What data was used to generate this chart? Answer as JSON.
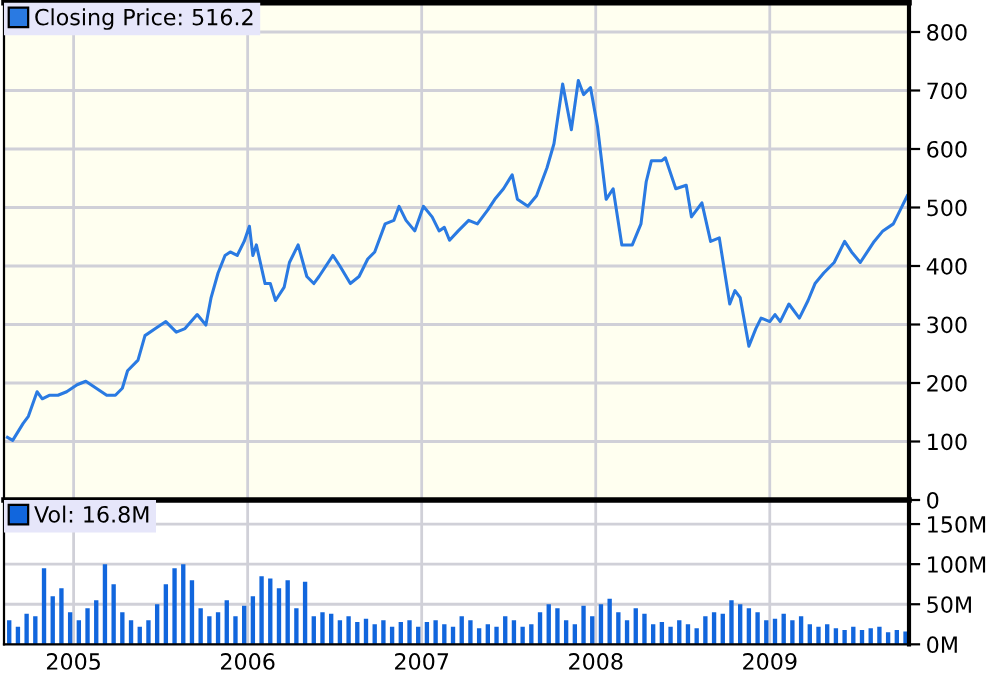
{
  "chart_data": [
    {
      "type": "line",
      "xlim": [
        2004.6,
        2009.8
      ],
      "xticks": [
        2005,
        2006,
        2007,
        2008,
        2009
      ],
      "ylim": [
        0,
        850
      ],
      "yticks": [
        0,
        100,
        200,
        300,
        400,
        500,
        600,
        700,
        800
      ],
      "grid": true,
      "legend": "top left",
      "tick_labels": "y",
      "series": [
        {
          "name": "Closing Price: 516.2",
          "color": "#2a7ae2",
          "x": [
            2004.62,
            2004.65,
            2004.71,
            2004.74,
            2004.79,
            2004.82,
            2004.86,
            2004.91,
            2004.96,
            2005.02,
            2005.07,
            2005.13,
            2005.19,
            2005.24,
            2005.28,
            2005.31,
            2005.37,
            2005.41,
            2005.47,
            2005.53,
            2005.59,
            2005.64,
            2005.71,
            2005.76,
            2005.79,
            2005.83,
            2005.87,
            2005.9,
            2005.94,
            2005.98,
            2006.01,
            2006.03,
            2006.05,
            2006.1,
            2006.13,
            2006.16,
            2006.21,
            2006.24,
            2006.29,
            2006.34,
            2006.38,
            2006.41,
            2006.49,
            2006.53,
            2006.59,
            2006.64,
            2006.69,
            2006.73,
            2006.79,
            2006.84,
            2006.87,
            2006.91,
            2006.96,
            2007.01,
            2007.06,
            2007.1,
            2007.13,
            2007.16,
            2007.21,
            2007.27,
            2007.32,
            2007.38,
            2007.42,
            2007.47,
            2007.52,
            2007.55,
            2007.61,
            2007.66,
            2007.72,
            2007.76,
            2007.81,
            2007.86,
            2007.9,
            2007.93,
            2007.97,
            2008.01,
            2008.06,
            2008.1,
            2008.15,
            2008.21,
            2008.26,
            2008.29,
            2008.32,
            2008.38,
            2008.4,
            2008.46,
            2008.52,
            2008.55,
            2008.61,
            2008.66,
            2008.71,
            2008.77,
            2008.8,
            2008.83,
            2008.88,
            2008.92,
            2008.95,
            2009.0,
            2009.03,
            2009.06,
            2009.11,
            2009.17,
            2009.22,
            2009.26,
            2009.31,
            2009.37,
            2009.43,
            2009.47,
            2009.52,
            2009.6,
            2009.65,
            2009.71,
            2009.74,
            2009.79
          ],
          "values": [
            107,
            102,
            131,
            143,
            185,
            173,
            179,
            179,
            185,
            197,
            203,
            191,
            179,
            179,
            191,
            221,
            239,
            281,
            293,
            305,
            287,
            293,
            317,
            299,
            346,
            388,
            418,
            424,
            418,
            442,
            468,
            418,
            436,
            370,
            370,
            341,
            364,
            406,
            436,
            382,
            370,
            382,
            418,
            400,
            370,
            382,
            412,
            424,
            472,
            478,
            502,
            478,
            460,
            502,
            484,
            460,
            466,
            444,
            460,
            478,
            472,
            496,
            514,
            532,
            556,
            514,
            502,
            520,
            568,
            609,
            711,
            633,
            717,
            693,
            705,
            639,
            514,
            532,
            436,
            436,
            472,
            544,
            580,
            580,
            585,
            532,
            538,
            484,
            508,
            442,
            448,
            335,
            358,
            346,
            263,
            293,
            311,
            305,
            317,
            305,
            335,
            311,
            341,
            370,
            388,
            406,
            442,
            424,
            406,
            442,
            460,
            472,
            490,
            520
          ]
        }
      ]
    },
    {
      "type": "bar",
      "xlim": [
        2004.6,
        2009.8
      ],
      "xticks": [
        2005,
        2006,
        2007,
        2008,
        2009
      ],
      "ylim": [
        0,
        180
      ],
      "yticks": [
        {
          "value": 0,
          "label": "0M"
        },
        {
          "value": 50,
          "label": "50M"
        },
        {
          "value": 100,
          "label": "100M"
        },
        {
          "value": 150,
          "label": "150M"
        }
      ],
      "grid": true,
      "legend": "top left",
      "series": [
        {
          "name": "Vol: 16.8M",
          "color": "#1166dd",
          "x": [
            2004.63,
            2004.68,
            2004.73,
            2004.78,
            2004.83,
            2004.88,
            2004.93,
            2004.98,
            2005.03,
            2005.08,
            2005.13,
            2005.18,
            2005.23,
            2005.28,
            2005.33,
            2005.38,
            2005.43,
            2005.48,
            2005.53,
            2005.58,
            2005.63,
            2005.68,
            2005.73,
            2005.78,
            2005.83,
            2005.88,
            2005.93,
            2005.98,
            2006.03,
            2006.08,
            2006.13,
            2006.18,
            2006.23,
            2006.28,
            2006.33,
            2006.38,
            2006.43,
            2006.48,
            2006.53,
            2006.58,
            2006.63,
            2006.68,
            2006.73,
            2006.78,
            2006.83,
            2006.88,
            2006.93,
            2006.98,
            2007.03,
            2007.08,
            2007.13,
            2007.18,
            2007.23,
            2007.28,
            2007.33,
            2007.38,
            2007.43,
            2007.48,
            2007.53,
            2007.58,
            2007.63,
            2007.68,
            2007.73,
            2007.78,
            2007.83,
            2007.88,
            2007.93,
            2007.98,
            2008.03,
            2008.08,
            2008.13,
            2008.18,
            2008.23,
            2008.28,
            2008.33,
            2008.38,
            2008.43,
            2008.48,
            2008.53,
            2008.58,
            2008.63,
            2008.68,
            2008.73,
            2008.78,
            2008.83,
            2008.88,
            2008.93,
            2008.98,
            2009.03,
            2009.08,
            2009.13,
            2009.18,
            2009.23,
            2009.28,
            2009.33,
            2009.38,
            2009.43,
            2009.48,
            2009.53,
            2009.58,
            2009.63,
            2009.68,
            2009.73,
            2009.78
          ],
          "values": [
            30,
            22,
            38,
            35,
            95,
            60,
            70,
            40,
            30,
            45,
            55,
            100,
            75,
            40,
            30,
            22,
            30,
            50,
            75,
            95,
            100,
            80,
            45,
            35,
            40,
            55,
            35,
            48,
            60,
            85,
            82,
            70,
            80,
            45,
            78,
            35,
            40,
            38,
            30,
            35,
            28,
            32,
            25,
            30,
            22,
            28,
            30,
            22,
            28,
            30,
            25,
            22,
            35,
            30,
            20,
            25,
            22,
            35,
            30,
            22,
            25,
            40,
            50,
            45,
            30,
            25,
            48,
            35,
            50,
            57,
            40,
            30,
            45,
            38,
            25,
            28,
            22,
            30,
            25,
            20,
            35,
            40,
            38,
            55,
            50,
            45,
            40,
            30,
            32,
            38,
            30,
            35,
            25,
            22,
            25,
            20,
            18,
            22,
            18,
            20,
            22,
            15,
            18,
            16
          ]
        }
      ]
    }
  ]
}
